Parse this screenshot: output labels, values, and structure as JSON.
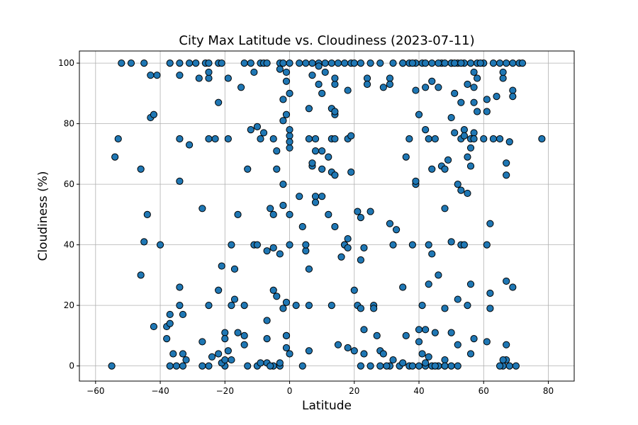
{
  "chart_data": {
    "type": "scatter",
    "title": "City Max Latitude vs. Cloudiness (2023-07-11)",
    "x_label": "Latitude",
    "y_label": "Cloudiness (%)",
    "color": "#1f77b4",
    "edgecolor": "#000000",
    "grid": true,
    "xlim": [
      -65,
      88
    ],
    "ylim": [
      -5,
      104
    ],
    "xticks": [
      {
        "value": -60,
        "label": "−60"
      },
      {
        "value": -40,
        "label": "−40"
      },
      {
        "value": -20,
        "label": "−20"
      },
      0,
      20,
      40,
      60,
      80
    ],
    "yticks": [
      0,
      20,
      40,
      60,
      80,
      100
    ],
    "x": [
      -52,
      -49,
      -45,
      -37,
      -34,
      -31,
      -29,
      -26,
      -25,
      -22,
      -21,
      -14,
      -12,
      -9,
      -8,
      -7,
      -3,
      -2,
      0,
      3,
      5,
      7,
      9,
      11,
      13,
      15,
      17,
      19,
      20,
      22,
      25,
      28,
      32,
      35,
      37,
      39,
      41,
      42,
      47,
      48,
      50,
      52,
      54,
      56,
      58,
      60,
      63,
      65,
      67,
      69,
      71,
      72,
      -55,
      -37,
      -35,
      -33,
      -27,
      -25,
      -20,
      -13,
      -5,
      -3,
      4,
      22,
      25,
      28,
      31,
      34,
      37,
      40,
      42,
      44,
      46,
      48,
      50,
      52,
      66,
      68,
      70,
      -54,
      -53,
      -46,
      -46,
      -45,
      -44,
      -43,
      -42,
      -42,
      -43,
      -41,
      -40,
      -38,
      -38,
      -37,
      -37,
      -36,
      -34,
      -34,
      -34,
      -34,
      -34,
      -33,
      -33,
      -32,
      -31,
      -28,
      -27,
      -27,
      -25,
      -25,
      -25,
      -25,
      -24,
      -23,
      -22,
      -22,
      -22,
      -21,
      -20,
      -20,
      -19,
      -19,
      -19,
      -18,
      -18,
      -17,
      -17,
      -16,
      -16,
      -15,
      -14,
      -14,
      -14,
      -13,
      -12,
      -11,
      -11,
      -10,
      -10,
      -9,
      -8,
      -7,
      -7,
      -7,
      -6,
      -5,
      -5,
      -5,
      -5,
      -4,
      -4,
      -4,
      -3,
      -3,
      -2,
      -2,
      -1,
      -1,
      0,
      -3,
      -2,
      -2,
      -2,
      -1,
      -1,
      -1,
      -1,
      0,
      0,
      0,
      0,
      0,
      -1,
      0,
      0,
      2,
      3,
      4,
      5,
      5,
      6,
      6,
      6,
      6,
      6,
      7,
      7,
      7,
      8,
      8,
      8,
      8,
      9,
      9,
      10,
      10,
      10,
      10,
      11,
      12,
      12,
      13,
      13,
      13,
      13,
      14,
      14,
      14,
      14,
      14,
      14,
      14,
      15,
      16,
      17,
      17,
      18,
      18,
      18,
      18,
      18,
      19,
      19,
      20,
      20,
      21,
      21,
      22,
      22,
      22,
      23,
      23,
      23,
      24,
      24,
      25,
      26,
      26,
      27,
      28,
      29,
      29,
      31,
      31,
      31,
      32,
      32,
      33,
      35,
      36,
      36,
      37,
      38,
      39,
      39,
      39,
      40,
      40,
      40,
      41,
      41,
      42,
      42,
      42,
      43,
      43,
      43,
      43,
      44,
      44,
      44,
      45,
      45,
      46,
      46,
      47,
      48,
      48,
      48,
      48,
      49,
      50,
      50,
      50,
      51,
      51,
      52,
      52,
      52,
      53,
      53,
      53,
      53,
      54,
      54,
      54,
      55,
      55,
      55,
      56,
      56,
      56,
      55,
      56,
      57,
      57,
      57,
      57,
      56,
      58,
      57,
      58,
      60,
      61,
      61,
      61,
      61,
      62,
      62,
      62,
      63,
      64,
      65,
      66,
      66,
      67,
      67,
      67,
      67,
      67,
      68,
      69,
      69,
      69,
      78,
      -21,
      -20,
      -18,
      -10,
      -9,
      -7,
      -6,
      30,
      35,
      38,
      42,
      45,
      48,
      65,
      66,
      35,
      38,
      44,
      50,
      57,
      59,
      46,
      51,
      53
    ],
    "values": [
      100,
      100,
      100,
      100,
      100,
      100,
      100,
      100,
      100,
      100,
      100,
      100,
      100,
      100,
      100,
      100,
      100,
      100,
      100,
      100,
      100,
      100,
      100,
      100,
      100,
      100,
      100,
      100,
      100,
      100,
      100,
      100,
      100,
      100,
      100,
      100,
      100,
      100,
      100,
      100,
      100,
      100,
      100,
      100,
      100,
      100,
      100,
      100,
      100,
      100,
      100,
      100,
      0,
      0,
      0,
      0,
      0,
      0,
      0,
      0,
      0,
      0,
      0,
      0,
      0,
      0,
      0,
      0,
      0,
      0,
      0,
      0,
      0,
      0,
      0,
      0,
      0,
      0,
      0,
      69,
      75,
      65,
      30,
      41,
      50,
      82,
      83,
      13,
      96,
      96,
      40,
      9,
      13,
      14,
      17,
      4,
      96,
      75,
      61,
      26,
      20,
      17,
      4,
      2,
      73,
      95,
      8,
      52,
      75,
      95,
      97,
      20,
      3,
      75,
      87,
      25,
      4,
      33,
      11,
      9,
      5,
      95,
      75,
      40,
      20,
      32,
      22,
      50,
      11,
      92,
      10,
      7,
      20,
      65,
      78,
      97,
      40,
      79,
      40,
      75,
      77,
      38,
      15,
      9,
      52,
      50,
      75,
      39,
      25,
      23,
      71,
      65,
      98,
      1,
      81,
      19,
      6,
      10,
      50,
      37,
      53,
      88,
      60,
      83,
      21,
      97,
      94,
      90,
      76,
      72,
      74,
      78,
      10,
      40,
      4,
      20,
      56,
      46,
      38,
      40,
      32,
      20,
      5,
      75,
      85,
      66,
      67,
      96,
      75,
      56,
      71,
      54,
      93,
      99,
      90,
      65,
      71,
      56,
      97,
      69,
      50,
      75,
      64,
      85,
      20,
      93,
      95,
      83,
      84,
      75,
      46,
      63,
      7,
      36,
      40,
      40,
      42,
      39,
      6,
      91,
      75,
      76,
      64,
      25,
      5,
      51,
      20,
      49,
      19,
      35,
      12,
      4,
      39,
      95,
      93,
      51,
      20,
      19,
      10,
      5,
      4,
      92,
      95,
      93,
      47,
      40,
      2,
      45,
      26,
      10,
      69,
      75,
      40,
      60,
      61,
      91,
      12,
      8,
      83,
      20,
      4,
      12,
      92,
      78,
      75,
      40,
      27,
      3,
      65,
      37,
      94,
      75,
      11,
      30,
      92,
      66,
      65,
      52,
      2,
      19,
      68,
      11,
      41,
      82,
      77,
      90,
      60,
      7,
      22,
      58,
      75,
      87,
      40,
      40,
      78,
      76,
      93,
      69,
      57,
      75,
      66,
      72,
      20,
      4,
      77,
      92,
      97,
      87,
      27,
      95,
      9,
      84,
      75,
      84,
      88,
      40,
      8,
      47,
      24,
      19,
      75,
      89,
      75,
      95,
      97,
      63,
      67,
      28,
      7,
      2,
      74,
      91,
      89,
      26,
      75,
      1,
      2,
      2,
      0,
      1,
      1,
      0,
      0,
      1,
      0,
      1,
      0,
      0,
      0,
      2,
      100,
      100,
      100,
      100,
      75,
      100,
      100,
      100,
      100
    ]
  }
}
